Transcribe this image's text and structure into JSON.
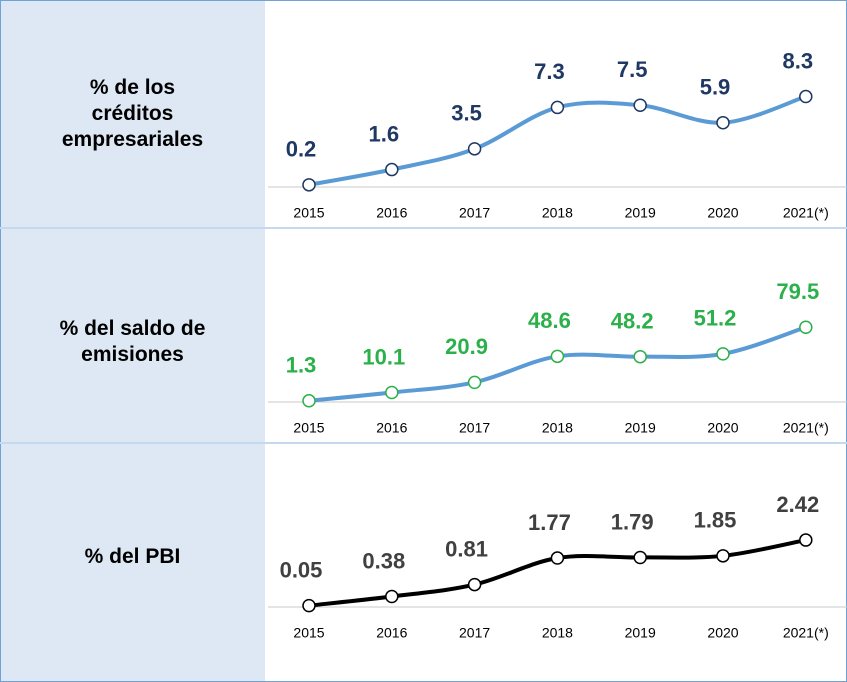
{
  "chart_data": [
    {
      "type": "line",
      "title": "% de los créditos empresariales",
      "categories": [
        "2015",
        "2016",
        "2017",
        "2018",
        "2019",
        "2020",
        "2021(*)"
      ],
      "values": [
        0.2,
        1.6,
        3.5,
        7.3,
        7.5,
        5.9,
        8.3
      ],
      "color": "#5b9bd5",
      "marker_color": "#1f3864",
      "label_color": "#1f3864",
      "ylim": [
        0,
        10
      ]
    },
    {
      "type": "line",
      "title": "% del saldo de emisiones",
      "categories": [
        "2015",
        "2016",
        "2017",
        "2018",
        "2019",
        "2020",
        "2021(*)"
      ],
      "values": [
        1.3,
        10.1,
        20.9,
        48.6,
        48.2,
        51.2,
        79.5
      ],
      "color": "#5b9bd5",
      "marker_color": "#2bb04a",
      "label_color": "#2bb04a",
      "ylim": [
        0,
        100
      ]
    },
    {
      "type": "line",
      "title": "% del PBI",
      "categories": [
        "2015",
        "2016",
        "2017",
        "2018",
        "2019",
        "2020",
        "2021(*)"
      ],
      "values": [
        0.05,
        0.38,
        0.81,
        1.77,
        1.79,
        1.85,
        2.42
      ],
      "color": "#000000",
      "marker_color": "#000000",
      "label_color": "#404040",
      "ylim": [
        0,
        3
      ]
    }
  ]
}
